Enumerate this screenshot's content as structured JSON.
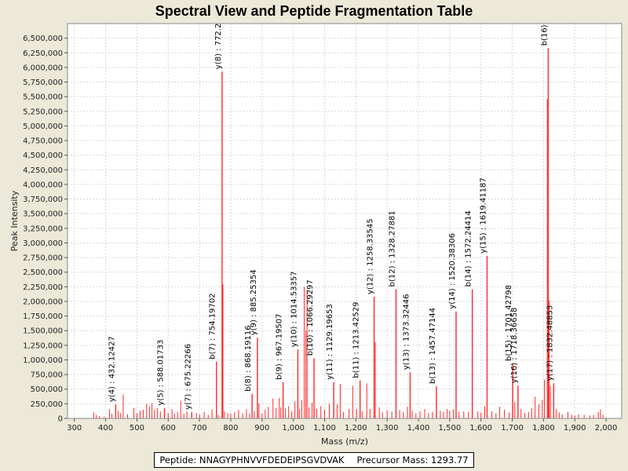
{
  "chart_data": {
    "type": "bar",
    "title": "Spectral View and Peptide Fragmentation Table",
    "xlabel": "Mass (m/z)",
    "ylabel": "Peak Intensity",
    "xlim": [
      278,
      2050
    ],
    "ylim": [
      0,
      6750000
    ],
    "x_ticks": [
      300,
      400,
      500,
      600,
      700,
      800,
      900,
      1000,
      1100,
      1200,
      1300,
      1400,
      1500,
      1600,
      1700,
      1800,
      1900,
      2000
    ],
    "x_tick_labels": [
      "300",
      "400",
      "500",
      "600",
      "700",
      "800",
      "900",
      "1,000",
      "1,100",
      "1,200",
      "1,300",
      "1,400",
      "1,500",
      "1,600",
      "1,700",
      "1,800",
      "1,900",
      "2,000"
    ],
    "y_ticks": [
      0,
      250000,
      500000,
      750000,
      1000000,
      1250000,
      1500000,
      1750000,
      2000000,
      2250000,
      2500000,
      2750000,
      3000000,
      3250000,
      3500000,
      3750000,
      4000000,
      4250000,
      4500000,
      4750000,
      5000000,
      5250000,
      5500000,
      5750000,
      6000000,
      6250000,
      6500000
    ],
    "y_tick_labels": [
      "0",
      "250,000",
      "500,000",
      "750,000",
      "1,000,000",
      "1,250,000",
      "1,500,000",
      "1,750,000",
      "2,000,000",
      "2,250,000",
      "2,500,000",
      "2,750,000",
      "3,000,000",
      "3,250,000",
      "3,500,000",
      "3,750,000",
      "4,000,000",
      "4,250,000",
      "4,500,000",
      "4,750,000",
      "5,000,000",
      "5,250,000",
      "5,500,000",
      "5,750,000",
      "6,000,000",
      "6,250,000",
      "6,500,000"
    ],
    "annotated_peaks": [
      {
        "mz": 432.12,
        "intensity": 240000,
        "label": "y(4) : 432.12427"
      },
      {
        "mz": 588.02,
        "intensity": 180000,
        "label": "y(5) : 588.01733"
      },
      {
        "mz": 675.23,
        "intensity": 110000,
        "label": "y(7) : 675.22266"
      },
      {
        "mz": 754.2,
        "intensity": 970000,
        "label": "b(7) : 754.19702"
      },
      {
        "mz": 772.2,
        "intensity": 5930000,
        "label": "y(8) : 772.2"
      },
      {
        "mz": 868.19,
        "intensity": 420000,
        "label": "b(8) : 868.19116"
      },
      {
        "mz": 885.25,
        "intensity": 1380000,
        "label": "y(9) : 885.25354"
      },
      {
        "mz": 967.2,
        "intensity": 620000,
        "label": "b(9) : 967.19507"
      },
      {
        "mz": 1014.53,
        "intensity": 1180000,
        "label": "y(10) : 1014.53357"
      },
      {
        "mz": 1066.29,
        "intensity": 1030000,
        "label": "b(10) : 1066.29297"
      },
      {
        "mz": 1129.2,
        "intensity": 620000,
        "label": "y(11) : 1129.19653"
      },
      {
        "mz": 1213.43,
        "intensity": 650000,
        "label": "b(11) : 1213.42529"
      },
      {
        "mz": 1258.34,
        "intensity": 2080000,
        "label": "y(12) : 1258.33545"
      },
      {
        "mz": 1328.28,
        "intensity": 2210000,
        "label": "b(12) : 1328.27881"
      },
      {
        "mz": 1373.32,
        "intensity": 790000,
        "label": "y(13) : 1373.32446"
      },
      {
        "mz": 1457.47,
        "intensity": 550000,
        "label": "b(13) : 1457.47144"
      },
      {
        "mz": 1520.38,
        "intensity": 1830000,
        "label": "y(14) : 1520.38306"
      },
      {
        "mz": 1572.24,
        "intensity": 2210000,
        "label": "b(14) : 1572.24414"
      },
      {
        "mz": 1619.41,
        "intensity": 2780000,
        "label": "y(15) : 1619.41187"
      },
      {
        "mz": 1701.43,
        "intensity": 940000,
        "label": "b(15) : 1701.42798"
      },
      {
        "mz": 1718.36,
        "intensity": 560000,
        "label": "y(16) : 1718.36658"
      },
      {
        "mz": 1815.0,
        "intensity": 6330000,
        "label": "b(16)"
      },
      {
        "mz": 1832.49,
        "intensity": 600000,
        "label": "y(17) : 1832.48853"
      }
    ],
    "other_peaks": [
      [
        362,
        100000
      ],
      [
        370,
        60000
      ],
      [
        380,
        40000
      ],
      [
        395,
        30000
      ],
      [
        412,
        160000
      ],
      [
        420,
        80000
      ],
      [
        440,
        130000
      ],
      [
        448,
        90000
      ],
      [
        456,
        410000
      ],
      [
        470,
        70000
      ],
      [
        490,
        180000
      ],
      [
        500,
        90000
      ],
      [
        510,
        130000
      ],
      [
        520,
        150000
      ],
      [
        531,
        250000
      ],
      [
        540,
        200000
      ],
      [
        548,
        260000
      ],
      [
        556,
        150000
      ],
      [
        565,
        180000
      ],
      [
        575,
        120000
      ],
      [
        600,
        90000
      ],
      [
        612,
        160000
      ],
      [
        620,
        80000
      ],
      [
        630,
        110000
      ],
      [
        640,
        300000
      ],
      [
        650,
        80000
      ],
      [
        660,
        120000
      ],
      [
        690,
        90000
      ],
      [
        700,
        70000
      ],
      [
        715,
        110000
      ],
      [
        728,
        60000
      ],
      [
        740,
        150000
      ],
      [
        760,
        60000
      ],
      [
        775,
        2290000
      ],
      [
        780,
        120000
      ],
      [
        790,
        90000
      ],
      [
        800,
        80000
      ],
      [
        812,
        110000
      ],
      [
        825,
        150000
      ],
      [
        838,
        90000
      ],
      [
        850,
        160000
      ],
      [
        860,
        80000
      ],
      [
        875,
        120000
      ],
      [
        890,
        250000
      ],
      [
        900,
        80000
      ],
      [
        910,
        150000
      ],
      [
        920,
        200000
      ],
      [
        935,
        340000
      ],
      [
        945,
        180000
      ],
      [
        955,
        350000
      ],
      [
        960,
        190000
      ],
      [
        975,
        170000
      ],
      [
        985,
        210000
      ],
      [
        995,
        120000
      ],
      [
        1005,
        290000
      ],
      [
        1020,
        160000
      ],
      [
        1027,
        310000
      ],
      [
        1035,
        2250000
      ],
      [
        1040,
        1500000
      ],
      [
        1044,
        2200000
      ],
      [
        1050,
        190000
      ],
      [
        1060,
        270000
      ],
      [
        1075,
        160000
      ],
      [
        1088,
        210000
      ],
      [
        1100,
        150000
      ],
      [
        1115,
        250000
      ],
      [
        1140,
        240000
      ],
      [
        1150,
        590000
      ],
      [
        1160,
        110000
      ],
      [
        1178,
        160000
      ],
      [
        1190,
        560000
      ],
      [
        1202,
        160000
      ],
      [
        1220,
        120000
      ],
      [
        1235,
        600000
      ],
      [
        1245,
        160000
      ],
      [
        1262,
        1300000
      ],
      [
        1275,
        190000
      ],
      [
        1285,
        110000
      ],
      [
        1300,
        140000
      ],
      [
        1315,
        120000
      ],
      [
        1340,
        140000
      ],
      [
        1352,
        110000
      ],
      [
        1365,
        200000
      ],
      [
        1380,
        130000
      ],
      [
        1392,
        90000
      ],
      [
        1405,
        120000
      ],
      [
        1420,
        160000
      ],
      [
        1432,
        90000
      ],
      [
        1445,
        110000
      ],
      [
        1470,
        130000
      ],
      [
        1480,
        110000
      ],
      [
        1492,
        160000
      ],
      [
        1500,
        130000
      ],
      [
        1512,
        160000
      ],
      [
        1530,
        110000
      ],
      [
        1545,
        120000
      ],
      [
        1560,
        110000
      ],
      [
        1590,
        120000
      ],
      [
        1600,
        100000
      ],
      [
        1612,
        210000
      ],
      [
        1635,
        120000
      ],
      [
        1648,
        90000
      ],
      [
        1660,
        200000
      ],
      [
        1675,
        150000
      ],
      [
        1690,
        100000
      ],
      [
        1708,
        280000
      ],
      [
        1728,
        160000
      ],
      [
        1740,
        90000
      ],
      [
        1752,
        110000
      ],
      [
        1762,
        180000
      ],
      [
        1773,
        370000
      ],
      [
        1785,
        240000
      ],
      [
        1796,
        320000
      ],
      [
        1803,
        660000
      ],
      [
        1812,
        5460000
      ],
      [
        1818,
        2020000
      ],
      [
        1822,
        560000
      ],
      [
        1840,
        160000
      ],
      [
        1850,
        100000
      ],
      [
        1860,
        70000
      ],
      [
        1878,
        110000
      ],
      [
        1890,
        60000
      ],
      [
        1900,
        50000
      ],
      [
        1912,
        70000
      ],
      [
        1930,
        60000
      ],
      [
        1948,
        50000
      ],
      [
        1960,
        60000
      ],
      [
        1975,
        110000
      ],
      [
        1982,
        150000
      ],
      [
        1990,
        60000
      ]
    ]
  },
  "info": {
    "peptide": "Peptide: NNAGYPHNVVFDEDEIPSGVDVAK",
    "precursor": "Precursor Mass: 1293.77"
  },
  "colors": {
    "peak": "#ff2a2a",
    "plot_bg": "#ffffff",
    "grid": "#d9d9d9",
    "page_bg": "#ece9d8"
  }
}
